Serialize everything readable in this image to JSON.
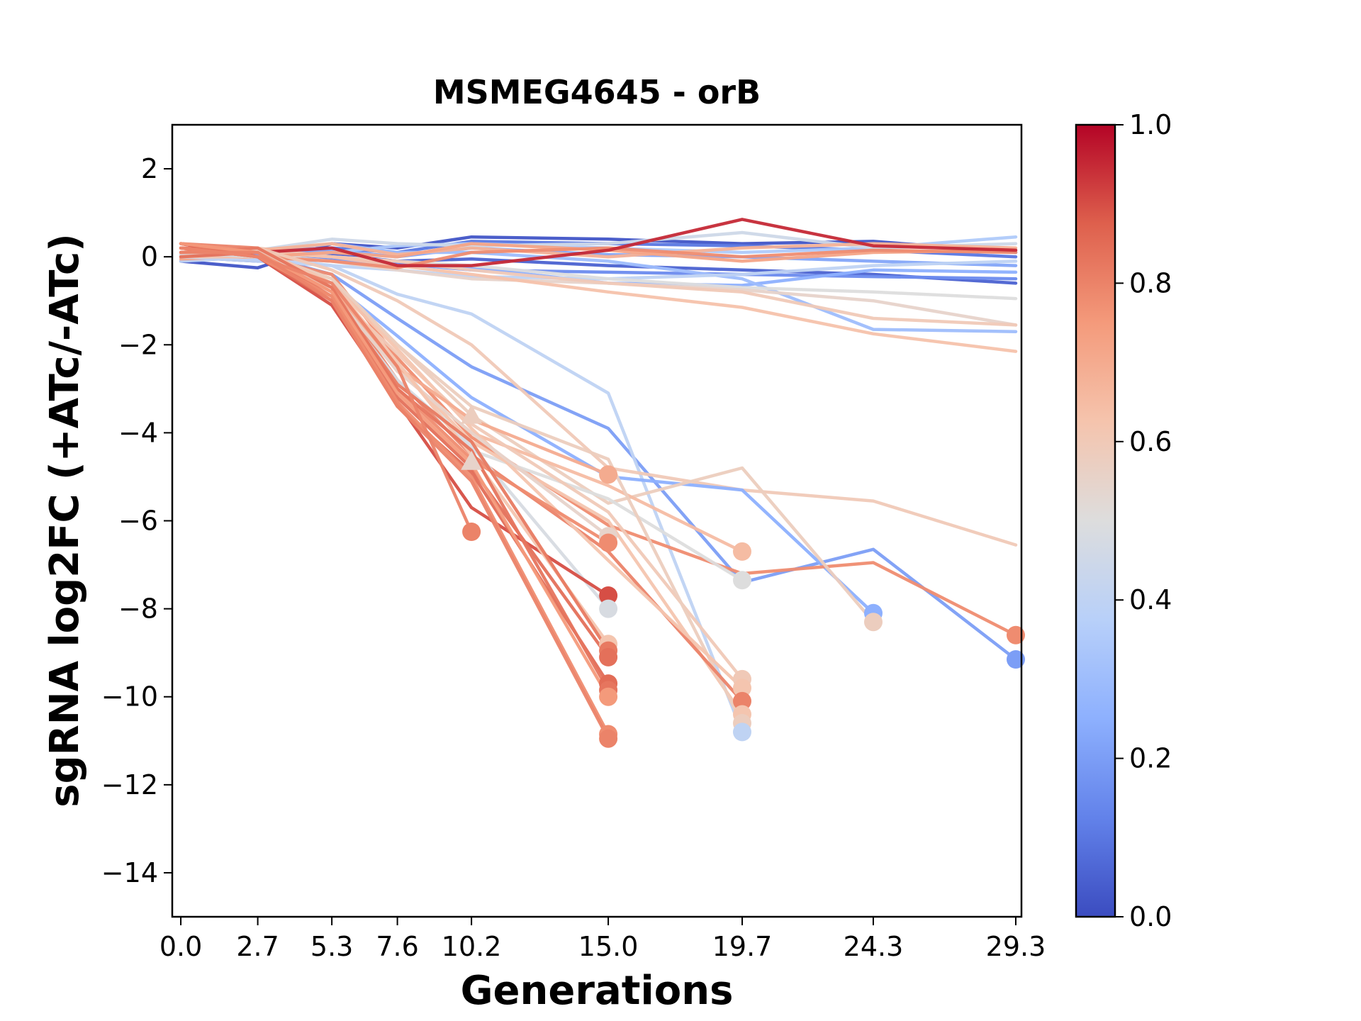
{
  "chart_data": {
    "type": "line",
    "title": "MSMEG4645 - orB",
    "xlabel": "Generations",
    "ylabel": "sgRNA log2FC (+ATc/-ATc)",
    "xlim": [
      -0.3,
      29.5
    ],
    "ylim": [
      -15,
      3
    ],
    "x_ticks": [
      0.0,
      2.7,
      5.3,
      7.6,
      10.2,
      15.0,
      19.7,
      24.3,
      29.3
    ],
    "x_tick_labels": [
      "0.0",
      "2.7",
      "5.3",
      "7.6",
      "10.2",
      "15.0",
      "19.7",
      "24.3",
      "29.3"
    ],
    "y_ticks": [
      2,
      0,
      -2,
      -4,
      -6,
      -8,
      -10,
      -12,
      -14
    ],
    "y_tick_labels": [
      "2",
      "0",
      "−2",
      "−4",
      "−6",
      "−8",
      "−10",
      "−12",
      "−14"
    ],
    "grid": false,
    "colorbar": {
      "colormap": "coolwarm",
      "range": [
        0.0,
        1.0
      ],
      "ticks": [
        0.0,
        0.2,
        0.4,
        0.6,
        0.8,
        1.0
      ],
      "tick_labels": [
        "0.0",
        "0.2",
        "0.4",
        "0.6",
        "0.8",
        "1.0"
      ]
    },
    "series": [
      {
        "c": 0.02,
        "x": [
          0.0,
          2.7,
          5.3,
          7.6,
          10.2,
          15.0,
          19.7,
          24.3,
          29.3
        ],
        "y": [
          -0.1,
          -0.25,
          0.3,
          0.2,
          0.45,
          0.4,
          0.3,
          0.35,
          0.1
        ]
      },
      {
        "c": 0.05,
        "x": [
          0.0,
          2.7,
          5.3,
          7.6,
          10.2,
          15.0,
          19.7,
          24.3,
          29.3
        ],
        "y": [
          0.0,
          -0.1,
          0.05,
          -0.1,
          -0.05,
          -0.2,
          -0.3,
          -0.4,
          -0.6
        ]
      },
      {
        "c": 0.1,
        "x": [
          0.0,
          2.7,
          5.3,
          7.6,
          10.2,
          15.0,
          19.7,
          24.3,
          29.3
        ],
        "y": [
          0.1,
          0.05,
          0.2,
          0.1,
          0.35,
          0.3,
          0.25,
          0.15,
          0.0
        ]
      },
      {
        "c": 0.15,
        "x": [
          0.0,
          2.7,
          5.3,
          7.6,
          10.2,
          15.0,
          19.7,
          24.3,
          29.3
        ],
        "y": [
          0.05,
          0.0,
          -0.05,
          -0.15,
          -0.3,
          -0.35,
          -0.4,
          -0.45,
          -0.5
        ]
      },
      {
        "c": 0.22,
        "x": [
          0.0,
          2.7,
          5.3,
          7.6,
          10.2,
          15.0,
          19.7,
          24.3,
          29.3
        ],
        "y": [
          0.0,
          0.1,
          0.15,
          0.0,
          0.2,
          0.05,
          0.0,
          -0.1,
          -0.2
        ]
      },
      {
        "c": 0.25,
        "x": [
          0.0,
          2.7,
          5.3,
          7.6,
          10.2,
          15.0,
          19.7,
          24.3,
          29.3
        ],
        "y": [
          0.1,
          0.0,
          -0.1,
          -0.2,
          -0.25,
          -0.6,
          -0.65,
          -0.3,
          -0.35
        ]
      },
      {
        "c": 0.3,
        "x": [
          0.0,
          2.7,
          5.3,
          7.6,
          10.2,
          15.0,
          19.7,
          24.3,
          29.3
        ],
        "y": [
          0.2,
          0.1,
          0.3,
          0.1,
          0.1,
          -0.1,
          -0.5,
          -1.65,
          -1.7
        ]
      },
      {
        "c": 0.35,
        "x": [
          0.0,
          2.7,
          5.3,
          7.6,
          10.2,
          15.0,
          19.7,
          24.3,
          29.3
        ],
        "y": [
          0.0,
          -0.05,
          0.1,
          0.25,
          0.3,
          0.2,
          0.1,
          0.2,
          0.45
        ]
      },
      {
        "c": 0.4,
        "x": [
          0.0,
          2.7,
          5.3,
          7.6,
          10.2,
          15.0,
          19.7,
          24.3,
          29.3
        ],
        "y": [
          -0.1,
          0.0,
          -0.2,
          -0.3,
          -0.45,
          -0.5,
          -0.4,
          -0.2,
          -0.1
        ]
      },
      {
        "c": 0.45,
        "x": [
          0.0,
          2.7,
          5.3,
          7.6,
          10.2,
          15.0,
          19.7,
          24.3,
          29.3
        ],
        "y": [
          0.2,
          0.15,
          0.4,
          0.3,
          0.25,
          0.3,
          0.55,
          0.2,
          0.3
        ]
      },
      {
        "c": 0.5,
        "x": [
          0.0,
          2.7,
          5.3,
          7.6,
          10.2,
          15.0,
          19.7,
          24.3,
          29.3
        ],
        "y": [
          0.05,
          0.1,
          0.0,
          -0.1,
          -0.2,
          -0.5,
          -0.7,
          -0.8,
          -0.95
        ]
      },
      {
        "c": 0.55,
        "x": [
          0.0,
          2.7,
          5.3,
          7.6,
          10.2,
          15.0,
          19.7,
          24.3,
          29.3
        ],
        "y": [
          0.0,
          0.05,
          -0.1,
          -0.3,
          -0.5,
          -0.6,
          -0.75,
          -1.0,
          -1.55
        ]
      },
      {
        "c": 0.6,
        "x": [
          0.0,
          2.7,
          5.3,
          7.6,
          10.2,
          15.0,
          19.7,
          24.3,
          29.3
        ],
        "y": [
          0.1,
          0.2,
          0.0,
          -0.1,
          -0.3,
          -0.6,
          -0.8,
          -1.4,
          -1.55
        ]
      },
      {
        "c": 0.63,
        "x": [
          0.0,
          2.7,
          5.3,
          7.6,
          10.2,
          15.0,
          19.7,
          24.3,
          29.3
        ],
        "y": [
          0.2,
          0.1,
          0.0,
          -0.2,
          -0.4,
          -0.8,
          -1.15,
          -1.75,
          -2.15
        ]
      },
      {
        "c": 0.68,
        "x": [
          0.0,
          2.7,
          5.3,
          7.6,
          10.2,
          15.0,
          19.7,
          24.3,
          29.3
        ],
        "y": [
          0.1,
          0.15,
          0.3,
          0.05,
          0.2,
          0.0,
          0.2,
          0.3,
          0.2
        ]
      },
      {
        "c": 0.72,
        "x": [
          0.0,
          2.7,
          5.3,
          7.6,
          10.2,
          15.0,
          19.7,
          24.3,
          29.3
        ],
        "y": [
          -0.05,
          0.0,
          0.1,
          0.0,
          0.3,
          0.15,
          -0.1,
          0.1,
          0.15
        ]
      },
      {
        "c": 0.78,
        "x": [
          0.0,
          2.7,
          5.3,
          7.6,
          10.2,
          15.0,
          19.7,
          24.3,
          29.3
        ],
        "y": [
          0.0,
          0.0,
          -0.1,
          -0.25,
          0.1,
          0.2,
          0.0,
          0.15,
          0.1
        ]
      },
      {
        "c": 0.95,
        "x": [
          0.0,
          2.7,
          5.3,
          7.6,
          10.2,
          15.0,
          19.7,
          24.3,
          29.3
        ],
        "y": [
          0.3,
          0.1,
          0.2,
          -0.2,
          -0.2,
          0.15,
          0.85,
          0.25,
          0.15
        ]
      },
      {
        "c": 0.2,
        "x": [
          0.0,
          2.7,
          5.3,
          7.6,
          10.2,
          15.0,
          19.7,
          24.3,
          29.3
        ],
        "y": [
          0.0,
          0.05,
          -0.4,
          -1.4,
          -2.5,
          -3.9,
          -7.4,
          -6.65,
          -9.15
        ]
      },
      {
        "c": 0.4,
        "x": [
          0.0,
          2.7,
          5.3,
          7.6,
          10.2,
          15.0,
          19.7
        ],
        "y": [
          0.0,
          -0.1,
          -0.2,
          -0.85,
          -1.3,
          -3.1,
          -10.8
        ]
      },
      {
        "c": 0.6,
        "x": [
          0.0,
          2.7,
          5.3,
          7.6,
          10.2,
          15.0,
          19.7,
          24.3,
          29.3
        ],
        "y": [
          0.1,
          0.2,
          -0.3,
          -1.0,
          -2.0,
          -4.8,
          -5.3,
          -5.55,
          -6.55
        ]
      },
      {
        "c": 0.25,
        "x": [
          0.0,
          2.7,
          5.3,
          7.6,
          10.2,
          15.0,
          19.7,
          24.3
        ],
        "y": [
          0.0,
          0.1,
          -0.6,
          -1.8,
          -3.2,
          -5.0,
          -5.3,
          -8.1
        ]
      },
      {
        "c": 0.78,
        "x": [
          0.0,
          2.7,
          5.3,
          7.6,
          10.2,
          15.0,
          19.7,
          24.3,
          29.3
        ],
        "y": [
          0.3,
          0.0,
          -0.4,
          -2.3,
          -4.1,
          -6.1,
          -7.2,
          -6.95,
          -8.6
        ]
      },
      {
        "c": 0.58,
        "x": [
          0.0,
          2.7,
          5.3,
          7.6,
          10.2,
          15.0,
          19.7,
          24.3
        ],
        "y": [
          0.2,
          0.1,
          -0.5,
          -2.0,
          -3.6,
          -5.6,
          -4.8,
          -8.3
        ]
      },
      {
        "c": 0.5,
        "x": [
          0.0,
          2.7,
          5.3,
          7.6,
          10.2,
          15.0,
          19.7
        ],
        "y": [
          0.1,
          0.0,
          -0.7,
          -2.4,
          -4.4,
          -5.5,
          -7.35
        ]
      },
      {
        "c": 0.65,
        "x": [
          0.0,
          2.7,
          5.3,
          7.6,
          10.2,
          15.0,
          19.7
        ],
        "y": [
          0.2,
          0.1,
          -0.6,
          -2.6,
          -4.0,
          -5.2,
          -6.7
        ]
      },
      {
        "c": 0.6,
        "x": [
          0.0,
          2.7,
          5.3,
          7.6,
          10.2,
          15.0,
          19.7
        ],
        "y": [
          0.0,
          0.2,
          -0.8,
          -2.2,
          -3.8,
          -5.8,
          -9.6
        ]
      },
      {
        "c": 0.62,
        "x": [
          0.0,
          2.7,
          5.3,
          7.6,
          10.2,
          15.0,
          19.7
        ],
        "y": [
          0.1,
          0.0,
          -0.9,
          -2.5,
          -4.2,
          -6.0,
          -10.4
        ]
      },
      {
        "c": 0.58,
        "x": [
          0.0,
          2.7,
          5.3,
          7.6,
          10.2,
          15.0,
          19.7
        ],
        "y": [
          0.2,
          0.1,
          -0.5,
          -2.0,
          -3.4,
          -4.6,
          -10.6
        ]
      },
      {
        "c": 0.8,
        "x": [
          0.0,
          2.7,
          5.3,
          7.6,
          10.2,
          15.0,
          19.7
        ],
        "y": [
          0.3,
          0.2,
          -0.7,
          -2.8,
          -4.5,
          -6.7,
          -10.1
        ]
      },
      {
        "c": 0.62,
        "x": [
          0.0,
          2.7,
          5.3,
          7.6,
          10.2,
          15.0,
          19.7
        ],
        "y": [
          0.0,
          0.0,
          -0.6,
          -2.1,
          -3.9,
          -6.9,
          -9.8
        ]
      },
      {
        "c": 0.7,
        "x": [
          0.0,
          2.7,
          5.3,
          7.6,
          10.2,
          15.0
        ],
        "y": [
          0.2,
          0.1,
          -0.7,
          -2.5,
          -3.7,
          -4.95
        ]
      },
      {
        "c": 0.48,
        "x": [
          0.0,
          2.7,
          5.3,
          7.6,
          10.2,
          15.0
        ],
        "y": [
          0.1,
          0.0,
          -0.9,
          -2.8,
          -4.3,
          -8.0
        ]
      },
      {
        "c": 0.55,
        "x": [
          0.0,
          2.7,
          5.3,
          7.6,
          10.2,
          15.0
        ],
        "y": [
          0.0,
          0.15,
          -0.8,
          -2.6,
          -4.0,
          -6.35
        ]
      },
      {
        "c": 0.78,
        "x": [
          0.0,
          2.7,
          5.3,
          7.6,
          10.2,
          15.0
        ],
        "y": [
          0.2,
          0.1,
          -1.0,
          -3.0,
          -4.6,
          -6.5
        ]
      },
      {
        "c": 0.9,
        "x": [
          0.0,
          2.7,
          5.3,
          7.6,
          10.2,
          15.0
        ],
        "y": [
          0.3,
          0.0,
          -1.1,
          -3.3,
          -5.7,
          -7.7
        ]
      },
      {
        "c": 0.62,
        "x": [
          0.0,
          2.7,
          5.3,
          7.6,
          10.2,
          15.0
        ],
        "y": [
          0.1,
          0.2,
          -0.6,
          -2.4,
          -4.5,
          -8.8
        ]
      },
      {
        "c": 0.82,
        "x": [
          0.0,
          2.7,
          5.3,
          7.6,
          10.2,
          15.0
        ],
        "y": [
          0.2,
          0.1,
          -0.8,
          -2.9,
          -4.2,
          -8.95
        ]
      },
      {
        "c": 0.84,
        "x": [
          0.0,
          2.7,
          5.3,
          7.6,
          10.2,
          15.0
        ],
        "y": [
          0.0,
          0.1,
          -0.9,
          -3.2,
          -4.8,
          -9.1
        ]
      },
      {
        "c": 0.85,
        "x": [
          0.0,
          2.7,
          5.3,
          7.6,
          10.2,
          15.0
        ],
        "y": [
          0.2,
          0.0,
          -1.0,
          -3.4,
          -4.9,
          -9.7
        ]
      },
      {
        "c": 0.83,
        "x": [
          0.0,
          2.7,
          5.3,
          7.6,
          10.2,
          15.0
        ],
        "y": [
          0.1,
          0.2,
          -0.7,
          -3.0,
          -4.4,
          -9.85
        ]
      },
      {
        "c": 0.75,
        "x": [
          0.0,
          2.7,
          5.3,
          7.6,
          10.2,
          15.0
        ],
        "y": [
          0.3,
          0.1,
          -0.8,
          -3.1,
          -4.7,
          -10.0
        ]
      },
      {
        "c": 0.78,
        "x": [
          0.0,
          2.7,
          5.3,
          7.6,
          10.2,
          15.0
        ],
        "y": [
          0.2,
          0.0,
          -0.9,
          -3.3,
          -5.0,
          -10.85
        ]
      },
      {
        "c": 0.8,
        "x": [
          0.0,
          2.7,
          5.3,
          7.6,
          10.2,
          15.0
        ],
        "y": [
          0.1,
          0.1,
          -1.0,
          -3.4,
          -5.1,
          -10.95
        ]
      },
      {
        "c": 0.8,
        "x": [
          0.0,
          2.7,
          5.3,
          7.6,
          10.2
        ],
        "y": [
          0.2,
          0.0,
          -0.6,
          -2.5,
          -6.25
        ]
      }
    ],
    "markers": [
      {
        "shape": "circle",
        "x": 29.3,
        "y": -9.15,
        "c": 0.2
      },
      {
        "shape": "circle",
        "x": 29.3,
        "y": -8.6,
        "c": 0.78
      },
      {
        "shape": "circle",
        "x": 24.3,
        "y": -8.1,
        "c": 0.25
      },
      {
        "shape": "circle",
        "x": 24.3,
        "y": -8.3,
        "c": 0.58
      },
      {
        "shape": "circle",
        "x": 19.7,
        "y": -6.7,
        "c": 0.65
      },
      {
        "shape": "circle",
        "x": 19.7,
        "y": -7.35,
        "c": 0.5
      },
      {
        "shape": "circle",
        "x": 19.7,
        "y": -9.6,
        "c": 0.6
      },
      {
        "shape": "circle",
        "x": 19.7,
        "y": -9.8,
        "c": 0.62
      },
      {
        "shape": "circle",
        "x": 19.7,
        "y": -10.1,
        "c": 0.8
      },
      {
        "shape": "circle",
        "x": 19.7,
        "y": -10.4,
        "c": 0.62
      },
      {
        "shape": "circle",
        "x": 19.7,
        "y": -10.6,
        "c": 0.58
      },
      {
        "shape": "circle",
        "x": 19.7,
        "y": -10.8,
        "c": 0.4
      },
      {
        "shape": "circle",
        "x": 15.0,
        "y": -4.95,
        "c": 0.7
      },
      {
        "shape": "circle",
        "x": 15.0,
        "y": -6.35,
        "c": 0.55
      },
      {
        "shape": "circle",
        "x": 15.0,
        "y": -6.5,
        "c": 0.78
      },
      {
        "shape": "circle",
        "x": 15.0,
        "y": -7.7,
        "c": 0.9
      },
      {
        "shape": "circle",
        "x": 15.0,
        "y": -8.0,
        "c": 0.48
      },
      {
        "shape": "circle",
        "x": 15.0,
        "y": -8.8,
        "c": 0.62
      },
      {
        "shape": "circle",
        "x": 15.0,
        "y": -8.95,
        "c": 0.82
      },
      {
        "shape": "circle",
        "x": 15.0,
        "y": -9.1,
        "c": 0.84
      },
      {
        "shape": "circle",
        "x": 15.0,
        "y": -9.7,
        "c": 0.85
      },
      {
        "shape": "circle",
        "x": 15.0,
        "y": -9.85,
        "c": 0.83
      },
      {
        "shape": "circle",
        "x": 15.0,
        "y": -10.0,
        "c": 0.75
      },
      {
        "shape": "circle",
        "x": 15.0,
        "y": -10.85,
        "c": 0.78
      },
      {
        "shape": "circle",
        "x": 15.0,
        "y": -10.95,
        "c": 0.8
      },
      {
        "shape": "circle",
        "x": 10.2,
        "y": -6.25,
        "c": 0.8
      },
      {
        "shape": "triangle",
        "x": 10.2,
        "y": -3.6,
        "c": 0.58
      },
      {
        "shape": "triangle",
        "x": 10.2,
        "y": -4.65,
        "c": 0.55
      }
    ]
  }
}
